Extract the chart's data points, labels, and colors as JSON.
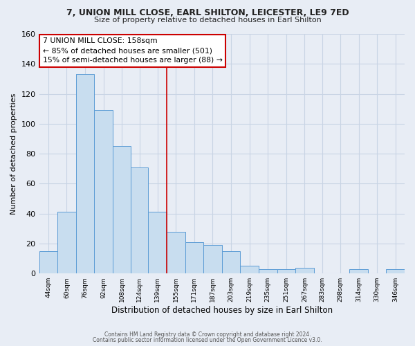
{
  "title_line1": "7, UNION MILL CLOSE, EARL SHILTON, LEICESTER, LE9 7ED",
  "title_line2": "Size of property relative to detached houses in Earl Shilton",
  "xlabel": "Distribution of detached houses by size in Earl Shilton",
  "ylabel": "Number of detached properties",
  "bar_edges": [
    44,
    60,
    76,
    92,
    108,
    124,
    139,
    155,
    171,
    187,
    203,
    219,
    235,
    251,
    267,
    283,
    298,
    314,
    330,
    346,
    362
  ],
  "bar_heights": [
    15,
    41,
    133,
    109,
    85,
    71,
    41,
    28,
    21,
    19,
    15,
    5,
    3,
    3,
    4,
    0,
    0,
    3,
    0,
    3
  ],
  "bar_color": "#c8ddef",
  "bar_edge_color": "#5b9bd5",
  "vline_x": 155,
  "vline_color": "#cc0000",
  "annotation_title": "7 UNION MILL CLOSE: 158sqm",
  "annotation_line1": "← 85% of detached houses are smaller (501)",
  "annotation_line2": "15% of semi-detached houses are larger (88) →",
  "annotation_box_facecolor": "#ffffff",
  "annotation_box_edgecolor": "#cc0000",
  "ylim": [
    0,
    160
  ],
  "yticks": [
    0,
    20,
    40,
    60,
    80,
    100,
    120,
    140,
    160
  ],
  "grid_color": "#c8d4e4",
  "background_color": "#e8edf5",
  "footer_line1": "Contains HM Land Registry data © Crown copyright and database right 2024.",
  "footer_line2": "Contains public sector information licensed under the Open Government Licence v3.0."
}
